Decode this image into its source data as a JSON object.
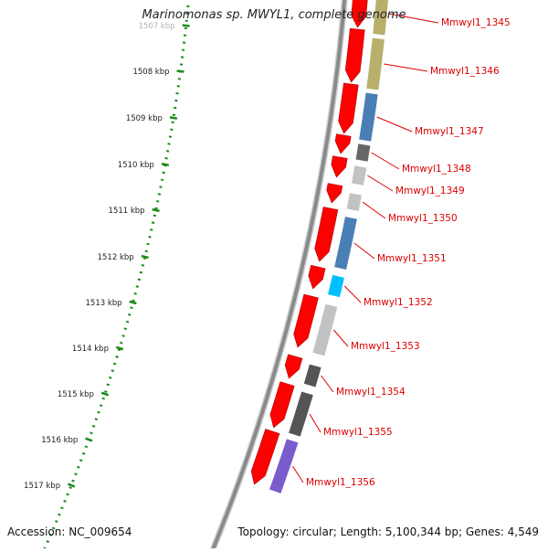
{
  "title": "Marinomonas sp. MWYL1, complete genome",
  "footer": {
    "accession": "Accession: NC_009654",
    "topology": "Topology: circular; Length: 5,100,344 bp; Genes: 4,549"
  },
  "ruler": {
    "unit": "kbp",
    "ticks": [
      "1507 kbp",
      "1508 kbp",
      "1509 kbp",
      "1510 kbp",
      "1511 kbp",
      "1512 kbp",
      "1513 kbp",
      "1514 kbp",
      "1515 kbp",
      "1516 kbp",
      "1517 kbp"
    ]
  },
  "genes": [
    {
      "name": "Mmwyl1_1345",
      "cog_color": "#b8b06a"
    },
    {
      "name": "Mmwyl1_1346",
      "cog_color": "#b8b06a"
    },
    {
      "name": "Mmwyl1_1347",
      "cog_color": "#4a7fb5"
    },
    {
      "name": "Mmwyl1_1348",
      "cog_color": "#666666"
    },
    {
      "name": "Mmwyl1_1349",
      "cog_color": "#c2c2c2"
    },
    {
      "name": "Mmwyl1_1350",
      "cog_color": "#c2c2c2"
    },
    {
      "name": "Mmwyl1_1351",
      "cog_color": "#4a7fb5"
    },
    {
      "name": "Mmwyl1_1352",
      "cog_color": "#00bfff"
    },
    {
      "name": "Mmwyl1_1353",
      "cog_color": "#c2c2c2"
    },
    {
      "name": "Mmwyl1_1354",
      "cog_color": "#555555"
    },
    {
      "name": "Mmwyl1_1355",
      "cog_color": "#555555"
    },
    {
      "name": "Mmwyl1_1356",
      "cog_color": "#7a5ccc"
    }
  ],
  "colors": {
    "cds": "#ff0000",
    "backbone": "#8a8a8a",
    "ruler_dots": "#1a8a1a",
    "label": "#dd0000"
  }
}
